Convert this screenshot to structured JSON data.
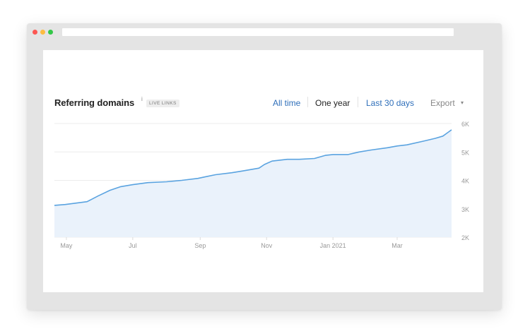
{
  "widget": {
    "title": "Referring domains",
    "info_mark": "i",
    "badge": "LIVE LINKS",
    "ranges": [
      "All time",
      "One year",
      "Last 30 days"
    ],
    "active_range": "One year",
    "export_label": "Export",
    "export_caret": "▾"
  },
  "colors": {
    "line": "#5aa3e0",
    "fill": "#eaf2fb",
    "link": "#2f6fba",
    "grid": "#ececec"
  },
  "chart_data": {
    "type": "area",
    "title": "Referring domains",
    "xlabel": "",
    "ylabel": "",
    "x_ticks": [
      "May",
      "Jul",
      "Sep",
      "Nov",
      "Jan 2021",
      "Mar"
    ],
    "y_ticks": [
      "6K",
      "5K",
      "4K",
      "3K",
      "2K"
    ],
    "ylim": [
      2000,
      6200
    ],
    "grid": true,
    "series": [
      {
        "x": [
          "2020-04-20",
          "2020-04-30",
          "2020-05-10",
          "2020-05-20",
          "2020-05-30",
          "2020-06-10",
          "2020-06-20",
          "2020-07-01",
          "2020-07-15",
          "2020-08-01",
          "2020-08-15",
          "2020-08-30",
          "2020-09-05",
          "2020-09-15",
          "2020-09-30",
          "2020-10-10",
          "2020-10-25",
          "2020-10-30",
          "2020-11-06",
          "2020-11-20",
          "2020-12-01",
          "2020-12-15",
          "2020-12-25",
          "2021-01-01",
          "2021-01-15",
          "2021-01-25",
          "2021-02-05",
          "2021-02-20",
          "2021-03-01",
          "2021-03-10",
          "2021-03-25",
          "2021-04-05",
          "2021-04-12",
          "2021-04-20"
        ],
        "values": [
          3120,
          3150,
          3200,
          3250,
          3450,
          3650,
          3780,
          3850,
          3920,
          3950,
          4000,
          4070,
          4120,
          4200,
          4270,
          4330,
          4430,
          4560,
          4680,
          4740,
          4740,
          4770,
          4880,
          4910,
          4910,
          5000,
          5070,
          5150,
          5210,
          5250,
          5380,
          5480,
          5560,
          5780
        ]
      }
    ]
  }
}
